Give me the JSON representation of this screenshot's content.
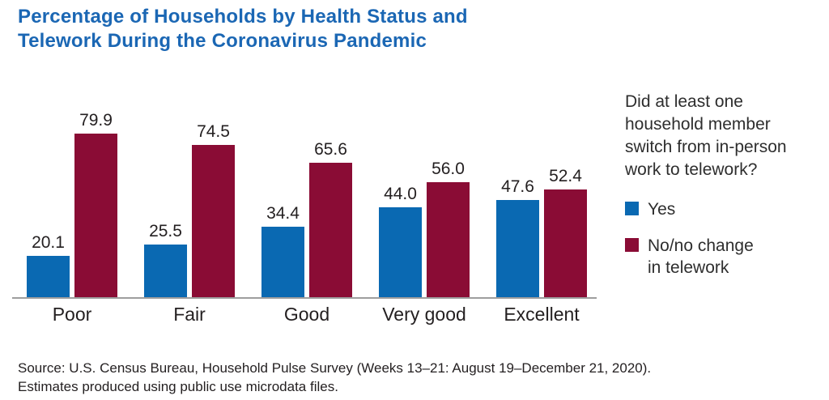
{
  "title": {
    "text": "Percentage of Households by Health Status and\nTelework During the Coronavirus Pandemic"
  },
  "chart_data": {
    "type": "bar",
    "categories": [
      "Poor",
      "Fair",
      "Good",
      "Very good",
      "Excellent"
    ],
    "series": [
      {
        "name": "Yes",
        "color": "#0a69b2",
        "values": [
          20.1,
          25.5,
          34.4,
          44.0,
          47.6
        ]
      },
      {
        "name": "No/no change in telework",
        "color": "#8a0c35",
        "values": [
          79.9,
          74.5,
          65.6,
          56.0,
          52.4
        ]
      }
    ],
    "title": "Percentage of Households by Health Status and Telework During the Coronavirus Pandemic",
    "xlabel": "",
    "ylabel": "",
    "ylim": [
      0,
      100
    ],
    "grid": false,
    "value_labels": true,
    "value_label_format": "one_decimal",
    "legend_position": "right"
  },
  "legend": {
    "question": "Did at least one\nhousehold member\nswitch from in-person\nwork to telework?",
    "items": [
      {
        "label": "Yes",
        "color": "#0a69b2"
      },
      {
        "label": "No/no change\nin telework",
        "color": "#8a0c35"
      }
    ]
  },
  "source": {
    "line1": "Source: U.S. Census Bureau, Household Pulse Survey (Weeks 13–21: August 19–December 21, 2020).",
    "line2": "Estimates produced using public use microdata files."
  },
  "colors": {
    "title_text": "#1b67b4",
    "bar_yes": "#0a69b2",
    "bar_no": "#8a0c35",
    "axis_line": "#9e9e9e",
    "label_text": "#231f20"
  }
}
